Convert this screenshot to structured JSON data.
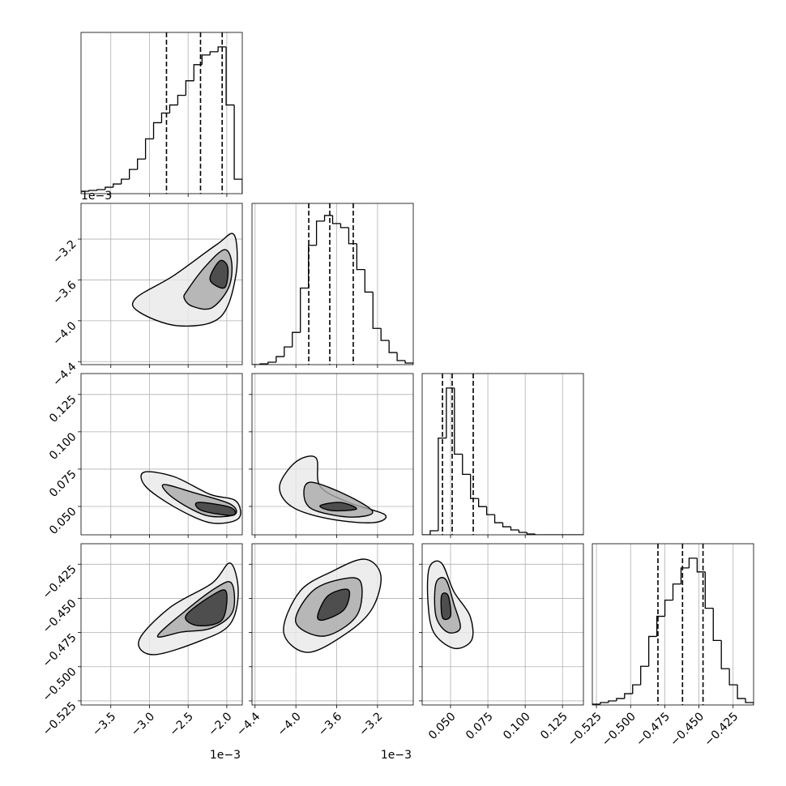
{
  "chart_data": {
    "type": "corner",
    "parameters": [
      {
        "lim": [
          -3.885,
          -1.8
        ],
        "offset_label": "1e−3",
        "ticks": [
          {
            "value": -3.5,
            "label": "−3.5"
          },
          {
            "value": -3.0,
            "label": "−3.0"
          },
          {
            "value": -2.5,
            "label": "−2.5"
          },
          {
            "value": -2.0,
            "label": "−2.0"
          }
        ]
      },
      {
        "lim": [
          -4.43,
          -2.85
        ],
        "offset_label": "1e−3",
        "ticks": [
          {
            "value": -4.4,
            "label": "−4.4"
          },
          {
            "value": -4.0,
            "label": "−4.0"
          },
          {
            "value": -3.6,
            "label": "−3.6"
          },
          {
            "value": -3.2,
            "label": "−3.2"
          }
        ]
      },
      {
        "lim": [
          0.031,
          0.139
        ],
        "ticks": [
          {
            "value": 0.05,
            "label": "0.050"
          },
          {
            "value": 0.075,
            "label": "0.075"
          },
          {
            "value": 0.1,
            "label": "0.100"
          },
          {
            "value": 0.125,
            "label": "0.125"
          }
        ]
      },
      {
        "lim": [
          -0.528,
          -0.41
        ],
        "ticks": [
          {
            "value": -0.525,
            "label": "−0.525"
          },
          {
            "value": -0.5,
            "label": "−0.500"
          },
          {
            "value": -0.475,
            "label": "−0.475"
          },
          {
            "value": -0.45,
            "label": "−0.450"
          },
          {
            "value": -0.425,
            "label": "−0.425"
          }
        ]
      }
    ],
    "histograms": [
      {
        "ylim": [
          0,
          200
        ],
        "quantiles": [
          -2.78,
          -2.34,
          -2.06
        ],
        "bins": [
          -3.885,
          -3.781,
          -3.676,
          -3.572,
          -3.468,
          -3.364,
          -3.26,
          -3.155,
          -3.051,
          -2.947,
          -2.843,
          -2.738,
          -2.634,
          -2.53,
          -2.426,
          -2.321,
          -2.217,
          -2.113,
          -2.009,
          -1.904,
          -1.8
        ],
        "counts": [
          3,
          4,
          5,
          8,
          12,
          18,
          30,
          43,
          68,
          88,
          100,
          110,
          122,
          140,
          160,
          172,
          176,
          182,
          110,
          18
        ]
      },
      {
        "ylim": [
          0,
          200
        ],
        "quantiles": [
          -3.874,
          -3.668,
          -3.438
        ],
        "bins": [
          -4.43,
          -4.351,
          -4.272,
          -4.193,
          -4.114,
          -4.035,
          -3.956,
          -3.877,
          -3.798,
          -3.719,
          -3.64,
          -3.561,
          -3.482,
          -3.403,
          -3.324,
          -3.245,
          -3.166,
          -3.087,
          -3.008,
          -2.929,
          -2.85
        ],
        "counts": [
          0,
          1,
          3,
          10,
          22,
          40,
          95,
          148,
          178,
          185,
          175,
          170,
          150,
          118,
          90,
          45,
          30,
          15,
          5,
          2
        ]
      },
      {
        "ylim": [
          0,
          200
        ],
        "quantiles": [
          0.0446,
          0.0511,
          0.0652
        ],
        "bins": [
          0.031,
          0.0364,
          0.0418,
          0.0472,
          0.0526,
          0.058,
          0.0634,
          0.0688,
          0.0742,
          0.0796,
          0.085,
          0.0904,
          0.0958,
          0.1012,
          0.1066,
          0.112,
          0.1174,
          0.1228,
          0.1282,
          0.1336,
          0.139
        ],
        "counts": [
          0,
          5,
          120,
          182,
          100,
          75,
          45,
          35,
          25,
          15,
          10,
          6,
          3,
          1,
          0,
          0,
          0,
          0,
          0,
          0
        ]
      },
      {
        "ylim": [
          0,
          200
        ],
        "quantiles": [
          -0.48,
          -0.462,
          -0.447
        ],
        "bins": [
          -0.528,
          -0.5221,
          -0.5162,
          -0.5103,
          -0.5044,
          -0.4985,
          -0.4926,
          -0.4867,
          -0.4808,
          -0.4749,
          -0.469,
          -0.4631,
          -0.4572,
          -0.4513,
          -0.4454,
          -0.4395,
          -0.4336,
          -0.4277,
          -0.4218,
          -0.4159,
          -0.41
        ],
        "counts": [
          1,
          3,
          5,
          8,
          14,
          25,
          48,
          85,
          110,
          130,
          150,
          170,
          182,
          165,
          120,
          80,
          45,
          25,
          8,
          3
        ]
      }
    ],
    "pairs": [
      {
        "contours": [
          {
            "x": [
              -3.176,
              -2.686,
              -2.134,
              -1.904,
              -1.883,
              -2.092,
              -2.634,
              -3.134
            ],
            "y": [
              -3.779,
              -3.557,
              -3.255,
              -3.16,
              -3.557,
              -3.97,
              -4.049,
              -3.914
            ]
          },
          {
            "x": [
              -2.509,
              -2.269,
              -2.029,
              -1.936,
              -1.977,
              -2.196,
              -2.446,
              -2.551
            ],
            "y": [
              -3.7,
              -3.461,
              -3.303,
              -3.438,
              -3.676,
              -3.874,
              -3.858,
              -3.779
            ]
          },
          {
            "x": [
              -2.217,
              -2.092,
              -1.988,
              -2.029
            ],
            "y": [
              -3.596,
              -3.414,
              -3.477,
              -3.676
            ]
          }
        ]
      },
      {
        "contours": [
          {
            "x": [
              -3.072,
              -2.686,
              -2.217,
              -1.883,
              -1.852,
              -2.217,
              -2.686,
              -3.051
            ],
            "y": [
              0.0729,
              0.07,
              0.0581,
              0.0537,
              0.0418,
              0.0391,
              0.0499,
              0.0635
            ]
          },
          {
            "x": [
              -2.822,
              -2.425,
              -1.956,
              -1.904,
              -2.269,
              -2.686
            ],
            "y": [
              0.0646,
              0.0592,
              0.0516,
              0.0445,
              0.044,
              0.0554
            ]
          },
          {
            "x": [
              -2.374,
              -1.956,
              -1.925,
              -2.321
            ],
            "y": [
              0.0527,
              0.0494,
              0.044,
              0.0472
            ]
          }
        ]
      },
      {
        "contours": [
          {
            "x": [
              -4.16,
              -4.001,
              -3.803,
              -3.763,
              -3.485,
              -3.128,
              -3.247,
              -3.684,
              -4.041
            ],
            "y": [
              0.0635,
              0.0798,
              0.0825,
              0.0635,
              0.0527,
              0.0445,
              0.0391,
              0.0418,
              0.0499
            ]
          },
          {
            "x": [
              -3.922,
              -3.843,
              -3.485,
              -3.247,
              -3.485,
              -3.843
            ],
            "y": [
              0.0592,
              0.0662,
              0.057,
              0.0461,
              0.0429,
              0.0483
            ]
          },
          {
            "x": [
              -3.763,
              -3.565,
              -3.406,
              -3.645
            ],
            "y": [
              0.0505,
              0.0527,
              0.0483,
              0.0472
            ]
          }
        ]
      },
      {
        "contours": [
          {
            "x": [
              -3.134,
              -2.738,
              -2.196,
              -1.956,
              -1.852,
              -1.956,
              -2.321,
              -2.947
            ],
            "y": [
              -0.4806,
              -0.4568,
              -0.4391,
              -0.4242,
              -0.445,
              -0.4687,
              -0.4806,
              -0.4912
            ]
          },
          {
            "x": [
              -2.895,
              -2.551,
              -2.134,
              -1.936,
              -1.925,
              -2.196,
              -2.582
            ],
            "y": [
              -0.4776,
              -0.4598,
              -0.442,
              -0.4391,
              -0.4598,
              -0.4717,
              -0.4746
            ]
          },
          {
            "x": [
              -2.53,
              -2.196,
              -2.009,
              -2.061,
              -2.374
            ],
            "y": [
              -0.4628,
              -0.448,
              -0.445,
              -0.4657,
              -0.4699
            ]
          }
        ]
      },
      {
        "contours": [
          {
            "x": [
              -4.12,
              -3.962,
              -3.644,
              -3.326,
              -3.168,
              -3.247,
              -3.485,
              -3.882
            ],
            "y": [
              -0.4746,
              -0.445,
              -0.4302,
              -0.4213,
              -0.4331,
              -0.4568,
              -0.4746,
              -0.4895
            ]
          },
          {
            "x": [
              -4.001,
              -3.842,
              -3.565,
              -3.366,
              -3.406,
              -3.723
            ],
            "y": [
              -0.4675,
              -0.445,
              -0.4361,
              -0.4379,
              -0.4628,
              -0.4776
            ]
          },
          {
            "x": [
              -3.787,
              -3.684,
              -3.485,
              -3.525,
              -3.723
            ],
            "y": [
              -0.4628,
              -0.448,
              -0.4438,
              -0.458,
              -0.4657
            ]
          }
        ]
      },
      {
        "contours": [
          {
            "x": [
              0.0359,
              0.044,
              0.0522,
              0.063,
              0.0641,
              0.0522,
              0.0386,
              0.0348
            ],
            "y": [
              -0.4272,
              -0.4242,
              -0.445,
              -0.4628,
              -0.4806,
              -0.4865,
              -0.4746,
              -0.4509
            ]
          },
          {
            "x": [
              0.0402,
              0.0467,
              0.0522,
              0.0565,
              0.0478,
              0.0402
            ],
            "y": [
              -0.4391,
              -0.4361,
              -0.4539,
              -0.4717,
              -0.4746,
              -0.4628
            ]
          },
          {
            "x": [
              0.044,
              0.0484,
              0.05,
              0.0446
            ],
            "y": [
              -0.448,
              -0.448,
              -0.4628,
              -0.464
            ]
          }
        ]
      }
    ]
  }
}
